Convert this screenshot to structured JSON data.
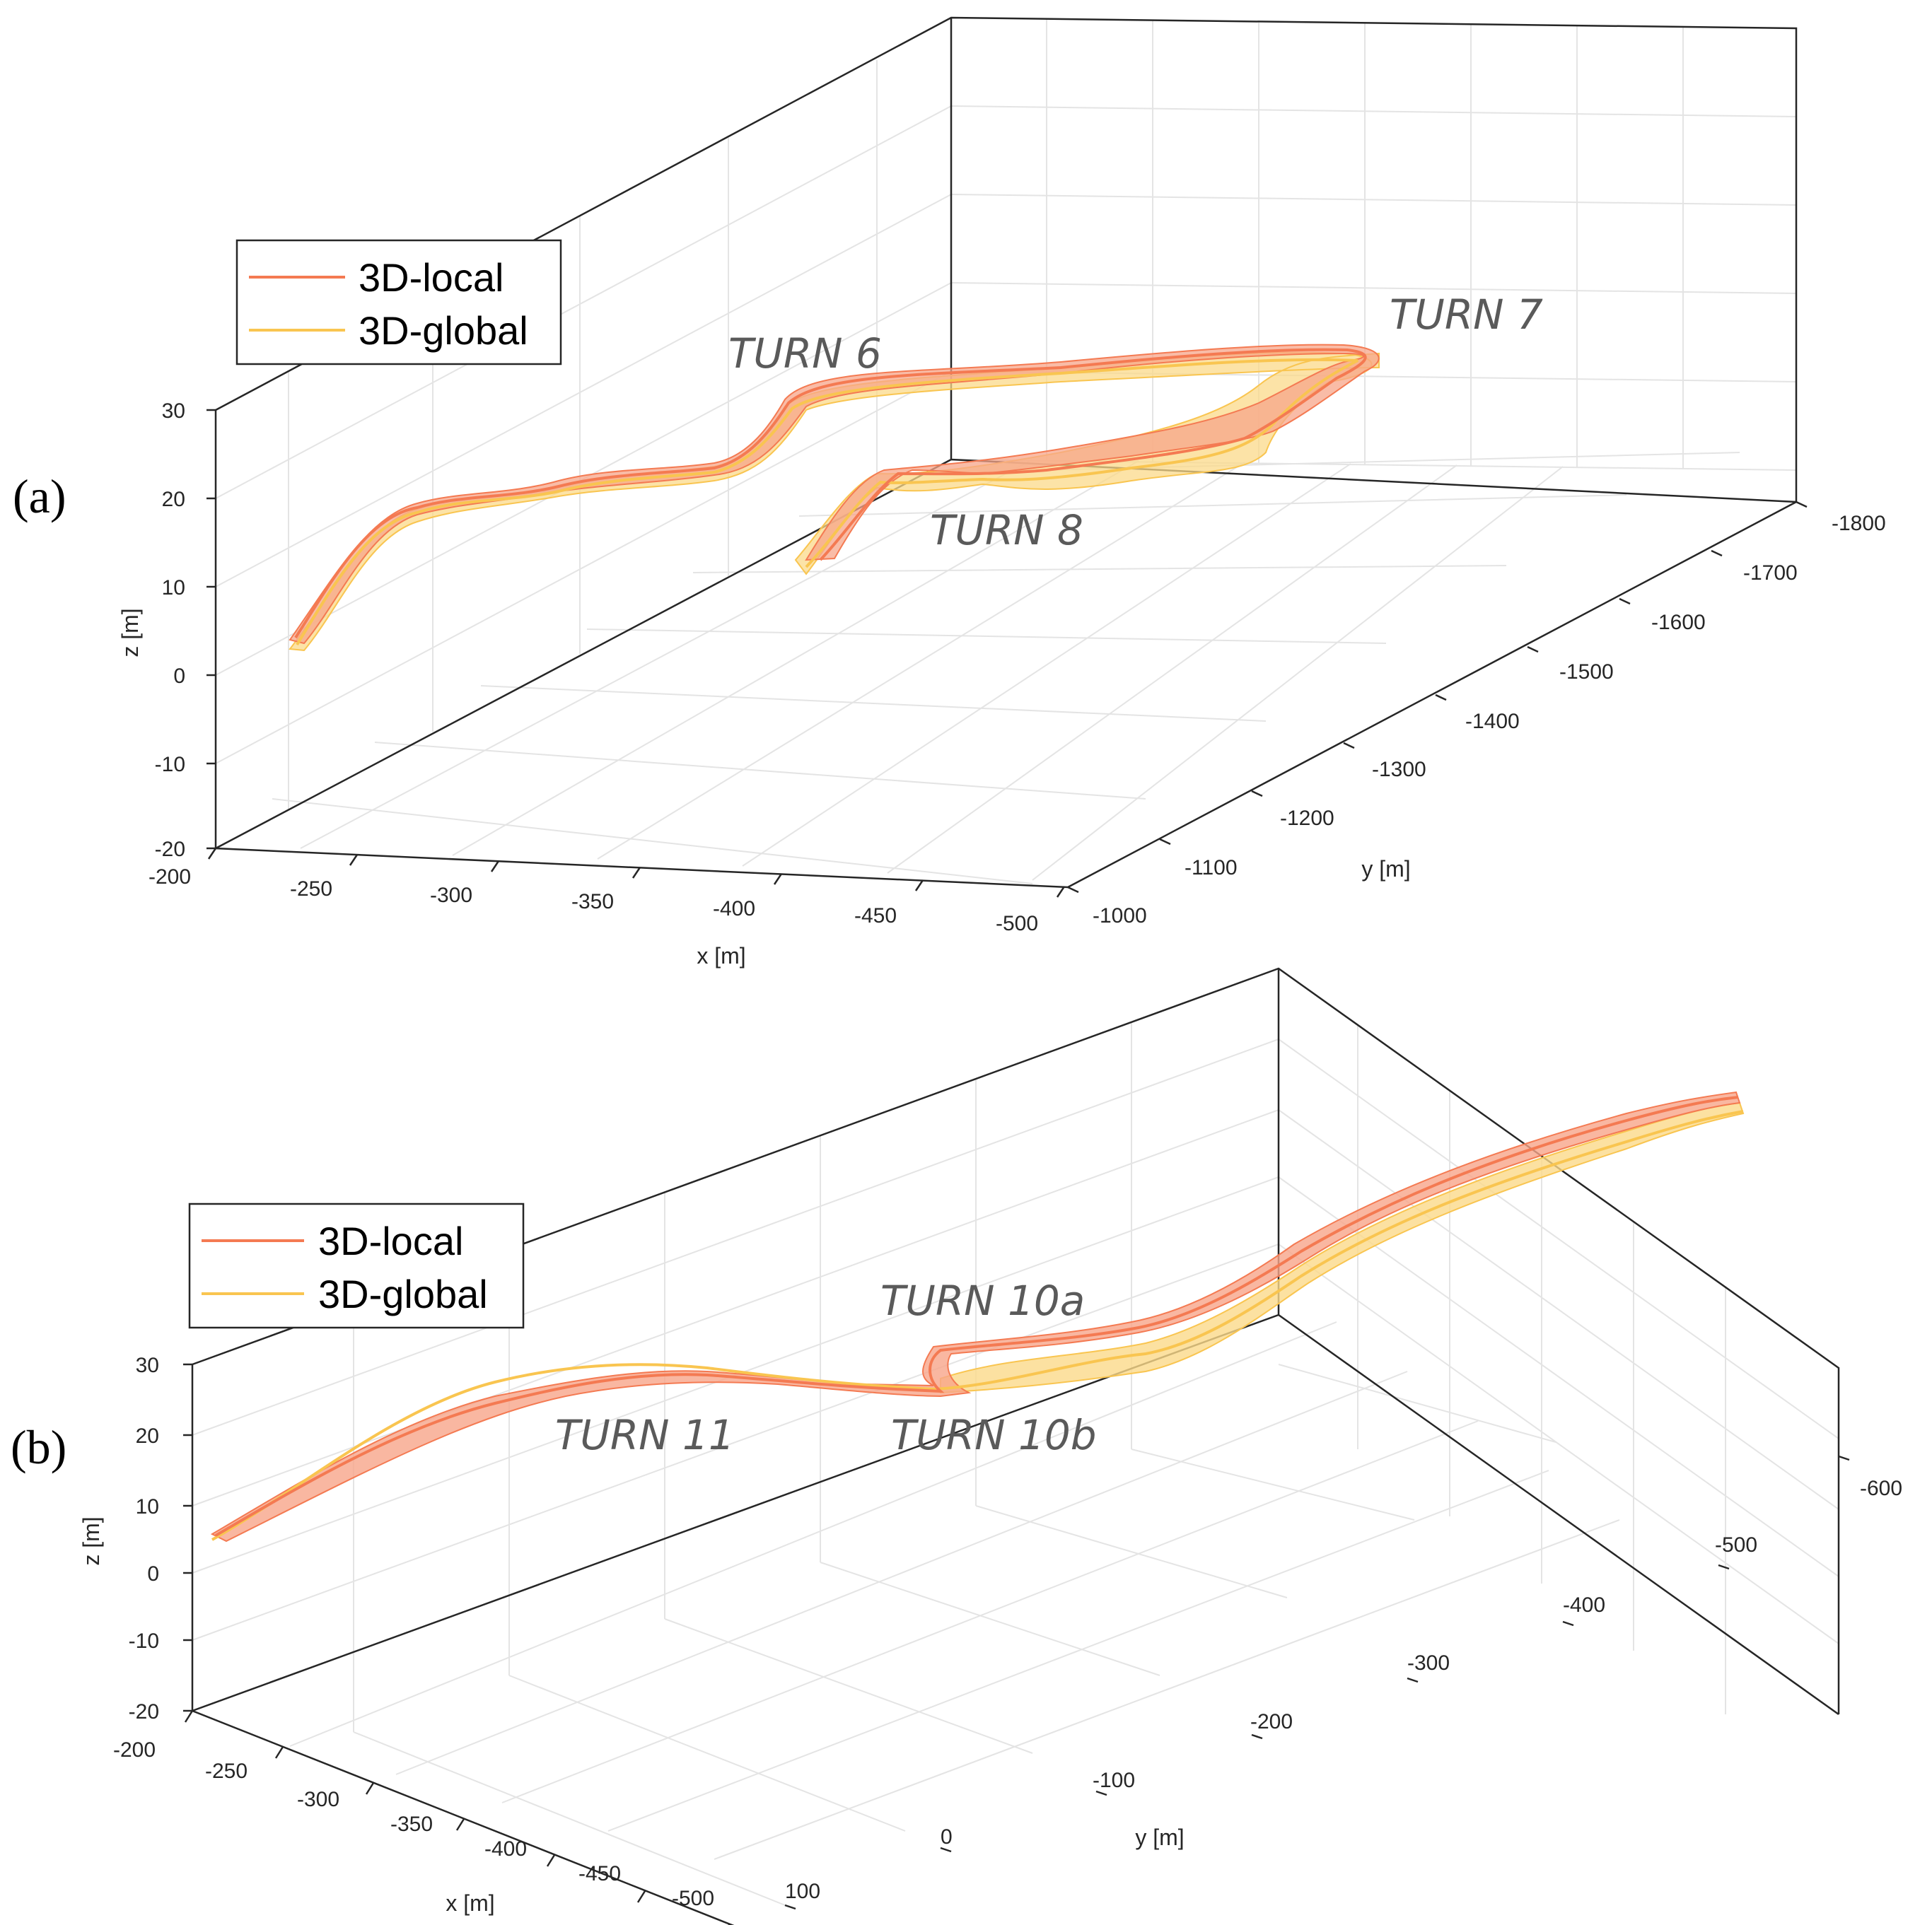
{
  "colors": {
    "local": "#f47a52",
    "global": "#f9c550",
    "local_fill": "#f7a58a",
    "global_fill": "#fbd98a"
  },
  "chart_data": [
    {
      "panel": "(a)",
      "type": "line",
      "title": "",
      "xlabel": "x [m]",
      "ylabel": "y [m]",
      "zlabel": "z [m]",
      "xlim": [
        -500,
        -200
      ],
      "ylim": [
        -1800,
        -1000
      ],
      "zlim": [
        -20,
        30
      ],
      "x_ticks": [
        "-200",
        "-250",
        "-300",
        "-350",
        "-400",
        "-450",
        "-500"
      ],
      "y_ticks": [
        "-1000",
        "-1100",
        "-1200",
        "-1300",
        "-1400",
        "-1500",
        "-1600",
        "-1700",
        "-1800"
      ],
      "z_ticks": [
        "-20",
        "-10",
        "0",
        "10",
        "20",
        "30"
      ],
      "legend": [
        "3D-local",
        "3D-global"
      ],
      "legend_position": "top-left",
      "grid": true,
      "annotations": [
        "TURN 6",
        "TURN 7",
        "TURN 8"
      ],
      "series": [
        {
          "name": "3D-local",
          "x": [
            -240,
            -280,
            -320,
            -380,
            -420,
            -450,
            -470,
            -480,
            -470,
            -420,
            -350,
            -310,
            -300,
            -340,
            -380
          ],
          "y": [
            -1030,
            -1120,
            -1200,
            -1290,
            -1380,
            -1470,
            -1560,
            -1660,
            -1760,
            -1790,
            -1770,
            -1690,
            -1590,
            -1490,
            -1400
          ],
          "z": [
            4,
            17,
            18,
            17,
            18,
            20,
            24,
            25,
            24,
            22,
            18,
            10,
            5,
            3,
            2
          ]
        },
        {
          "name": "3D-global",
          "x": [
            -240,
            -280,
            -320,
            -380,
            -420,
            -450,
            -470,
            -480,
            -470,
            -420,
            -350,
            -310,
            -300,
            -340,
            -380
          ],
          "y": [
            -1030,
            -1120,
            -1200,
            -1290,
            -1380,
            -1470,
            -1560,
            -1660,
            -1760,
            -1790,
            -1770,
            -1690,
            -1590,
            -1490,
            -1400
          ],
          "z": [
            2,
            15,
            17,
            16,
            17,
            19,
            23,
            24,
            23,
            20,
            14,
            7,
            3,
            1,
            0
          ]
        }
      ]
    },
    {
      "panel": "(b)",
      "type": "line",
      "title": "",
      "xlabel": "x [m]",
      "ylabel": "y [m]",
      "zlabel": "z [m]",
      "xlim": [
        -500,
        -200
      ],
      "ylim": [
        -600,
        100
      ],
      "zlim": [
        -20,
        30
      ],
      "x_ticks": [
        "-200",
        "-250",
        "-300",
        "-350",
        "-400",
        "-450",
        "-500"
      ],
      "y_ticks": [
        "100",
        "0",
        "-100",
        "-200",
        "-300",
        "-400",
        "-500",
        "-600"
      ],
      "z_ticks": [
        "-20",
        "-10",
        "0",
        "10",
        "20",
        "30"
      ],
      "legend": [
        "3D-local",
        "3D-global"
      ],
      "legend_position": "top-left",
      "grid": true,
      "annotations": [
        "TURN 11",
        "TURN 10a",
        "TURN 10b"
      ],
      "series": [
        {
          "name": "3D-local",
          "x": [
            -210,
            -250,
            -300,
            -340,
            -380,
            -400,
            -390,
            -410,
            -440,
            -470,
            -500
          ],
          "y": [
            50,
            0,
            -50,
            -100,
            -180,
            -250,
            -300,
            -380,
            -470,
            -550,
            -600
          ],
          "z": [
            6,
            15,
            26,
            28,
            25,
            22,
            26,
            25,
            24,
            23,
            22
          ]
        },
        {
          "name": "3D-global",
          "x": [
            -210,
            -250,
            -300,
            -340,
            -380,
            -400,
            -390,
            -410,
            -440,
            -470,
            -500
          ],
          "y": [
            50,
            0,
            -50,
            -100,
            -180,
            -250,
            -300,
            -380,
            -470,
            -550,
            -600
          ],
          "z": [
            6,
            17,
            28,
            28,
            25,
            22,
            22,
            23,
            23,
            22,
            21
          ]
        }
      ]
    }
  ]
}
